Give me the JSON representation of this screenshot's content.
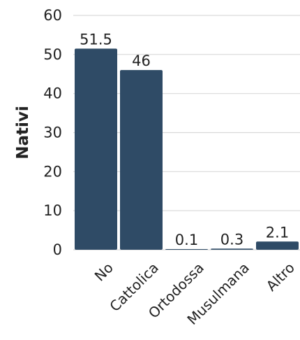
{
  "chart_data": {
    "type": "bar",
    "title": "",
    "xlabel": "",
    "ylabel": "Nativi",
    "categories": [
      "No",
      "Cattolica",
      "Ortodossa",
      "Musulmana",
      "Altro"
    ],
    "values": [
      51.5,
      46,
      0.1,
      0.3,
      2.1
    ],
    "value_labels": [
      "51.5",
      "46",
      "0.1",
      "0.3",
      "2.1"
    ],
    "ylim": [
      0,
      60
    ],
    "yticks": [
      0,
      10,
      20,
      30,
      40,
      50,
      60
    ],
    "grid": true,
    "legend": "none",
    "colors": {
      "bar": "#2f4b66",
      "grid": "#d9d9d9",
      "text": "#222222"
    }
  }
}
